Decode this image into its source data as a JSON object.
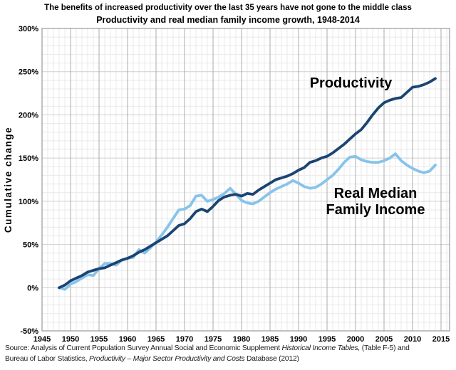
{
  "title": {
    "line1": "The benefits of increased productivity over the last 35 years have not gone to the middle class",
    "line2": "Productivity and real median family income growth, 1948-2014"
  },
  "y_axis": {
    "label": "Cumulative change",
    "min": -50,
    "max": 300,
    "minor_step": 10,
    "ticks": [
      {
        "v": 300,
        "label": "300%"
      },
      {
        "v": 250,
        "label": "250%"
      },
      {
        "v": 200,
        "label": "200%"
      },
      {
        "v": 150,
        "label": "150%"
      },
      {
        "v": 100,
        "label": "100%"
      },
      {
        "v": 50,
        "label": "50%"
      },
      {
        "v": 0,
        "label": "0%"
      },
      {
        "v": -50,
        "label": "-50%"
      }
    ]
  },
  "x_axis": {
    "min": 1945,
    "max": 2016.5,
    "minor_step": 1,
    "ticks": [
      {
        "v": 1945,
        "label": "1945"
      },
      {
        "v": 1950,
        "label": "1950"
      },
      {
        "v": 1955,
        "label": "1955"
      },
      {
        "v": 1960,
        "label": "1960"
      },
      {
        "v": 1965,
        "label": "1965"
      },
      {
        "v": 1970,
        "label": "1970"
      },
      {
        "v": 1975,
        "label": "1975"
      },
      {
        "v": 1980,
        "label": "1980"
      },
      {
        "v": 1985,
        "label": "1985"
      },
      {
        "v": 1990,
        "label": "1990"
      },
      {
        "v": 1995,
        "label": "1995"
      },
      {
        "v": 2000,
        "label": "2000"
      },
      {
        "v": 2005,
        "label": "2005"
      },
      {
        "v": 2010,
        "label": "2010"
      },
      {
        "v": 2015,
        "label": "2015"
      }
    ]
  },
  "annotations": {
    "productivity_label": "Productivity",
    "income_label_line1": "Real Median",
    "income_label_line2": "Family Income"
  },
  "source": {
    "line1_prefix": "Source:  Analysis of Current Population Survey Annual Social and Economic Supplement ",
    "line1_italic": "Historical Income Tables,",
    "line1_suffix": " (Table F-5) and",
    "line2_prefix": "Bureau of Labor Statistics, ",
    "line2_italic": "Productivity – Major Sector Productivity and Costs",
    "line2_suffix": " Database (2012)"
  },
  "colors": {
    "productivity_line": "#1a4472",
    "income_line": "#87c3ea",
    "grid_minor": "#e9e9e9",
    "grid_major_h": "#cfcfcf",
    "grid_major_v": "#ababab",
    "frame": "#9a9a9a"
  },
  "chart_data": {
    "type": "line",
    "title": "Productivity and real median family income growth, 1948-2014",
    "xlabel": "",
    "ylabel": "Cumulative change",
    "xlim": [
      1945,
      2016.5
    ],
    "ylim": [
      -50,
      300
    ],
    "grid": true,
    "legend_position": "inline-annotations",
    "x": [
      1948,
      1949,
      1950,
      1951,
      1952,
      1953,
      1954,
      1955,
      1956,
      1957,
      1958,
      1959,
      1960,
      1961,
      1962,
      1963,
      1964,
      1965,
      1966,
      1967,
      1968,
      1969,
      1970,
      1971,
      1972,
      1973,
      1974,
      1975,
      1976,
      1977,
      1978,
      1979,
      1980,
      1981,
      1982,
      1983,
      1984,
      1985,
      1986,
      1987,
      1988,
      1989,
      1990,
      1991,
      1992,
      1993,
      1994,
      1995,
      1996,
      1997,
      1998,
      1999,
      2000,
      2001,
      2002,
      2003,
      2004,
      2005,
      2006,
      2007,
      2008,
      2009,
      2010,
      2011,
      2012,
      2013,
      2014
    ],
    "series": [
      {
        "name": "Productivity",
        "values": [
          0,
          3,
          8,
          11,
          14,
          18,
          20,
          22,
          23,
          26,
          29,
          32,
          34,
          37,
          41,
          44,
          48,
          52,
          56,
          60,
          66,
          72,
          74,
          80,
          88,
          91,
          88,
          94,
          101,
          105,
          107,
          108,
          106,
          109,
          108,
          113,
          117,
          121,
          125,
          127,
          129,
          132,
          136,
          139,
          145,
          147,
          150,
          152,
          156,
          161,
          166,
          172,
          178,
          183,
          191,
          200,
          208,
          214,
          217,
          219,
          220,
          226,
          232,
          233,
          235,
          238,
          242
        ]
      },
      {
        "name": "Real Median Family Income",
        "values": [
          0,
          -2,
          4,
          7,
          11,
          15,
          14,
          22,
          28,
          28,
          26,
          32,
          34,
          35,
          44,
          40,
          46,
          53,
          61,
          70,
          80,
          90,
          91,
          95,
          106,
          107,
          100,
          102,
          105,
          109,
          115,
          108,
          101,
          98,
          97,
          100,
          105,
          110,
          114,
          117,
          120,
          124,
          121,
          117,
          115,
          116,
          120,
          125,
          130,
          137,
          145,
          151,
          152,
          148,
          146,
          145,
          145,
          147,
          150,
          155,
          147,
          142,
          138,
          135,
          133,
          135,
          142
        ]
      }
    ]
  }
}
